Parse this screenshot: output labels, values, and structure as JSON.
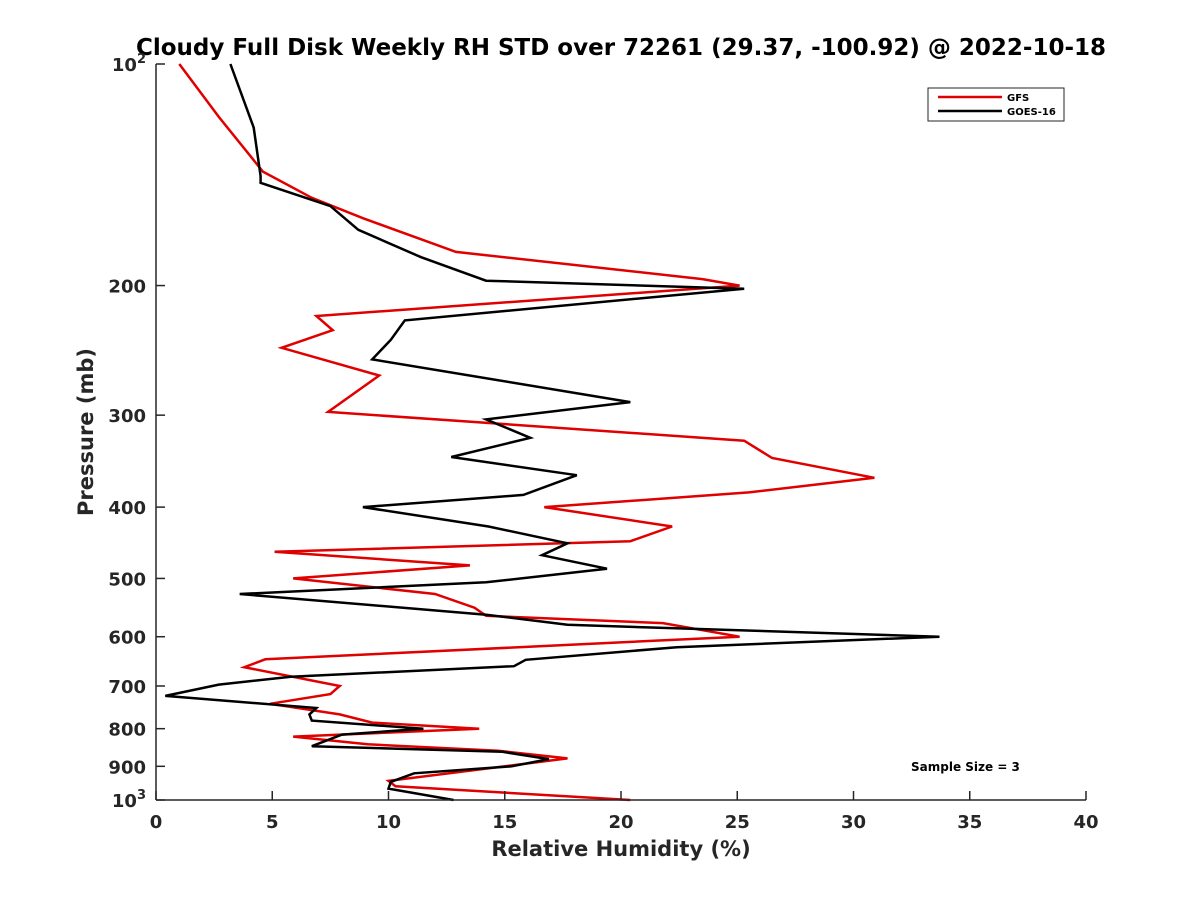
{
  "chart_data": {
    "type": "line",
    "title": "Cloudy Full Disk Weekly RH STD over 72261 (29.37, -100.92) @ 2022-10-18",
    "xlabel": "Relative Humidity (%)",
    "ylabel": "Pressure (mb)",
    "xlim": [
      0,
      40
    ],
    "ylim": [
      100,
      1000
    ],
    "y_scale": "log",
    "y_reversed": true,
    "x_ticks": [
      "0",
      "5",
      "10",
      "15",
      "20",
      "25",
      "30",
      "35",
      "40"
    ],
    "y_ticks": [
      {
        "value": 100,
        "base": "10",
        "exp": "2"
      },
      {
        "value": 200,
        "label": "200"
      },
      {
        "value": 300,
        "label": "300"
      },
      {
        "value": 400,
        "label": "400"
      },
      {
        "value": 500,
        "label": "500"
      },
      {
        "value": 600,
        "label": "600"
      },
      {
        "value": 700,
        "label": "700"
      },
      {
        "value": 800,
        "label": "800"
      },
      {
        "value": 900,
        "label": "900"
      },
      {
        "value": 1000,
        "base": "10",
        "exp": "3"
      }
    ],
    "legend_position": "top-right",
    "grid": false,
    "annotation": "Sample Size = 3",
    "series": [
      {
        "name": "GFS",
        "color": "#e00000",
        "x": [
          1.0,
          2.7,
          4.6,
          6.7,
          8.9,
          12.9,
          23.5,
          25.1,
          6.9,
          7.6,
          5.4,
          9.6,
          7.4,
          25.3,
          26.5,
          30.9,
          25.5,
          16.7,
          22.2,
          20.4,
          5.1,
          13.5,
          5.9,
          12.0,
          13.7,
          14.2,
          21.8,
          25.1,
          4.7,
          3.8,
          7.9,
          7.5,
          4.9,
          7.9,
          9.3,
          13.9,
          5.9,
          9.1,
          14.7,
          17.7,
          10.0,
          10.3,
          20.4
        ],
        "y": [
          100,
          118,
          140,
          152,
          162,
          180,
          196,
          200,
          220,
          230,
          243,
          265,
          297,
          325,
          343,
          365,
          382,
          400,
          425,
          445,
          460,
          480,
          500,
          525,
          548,
          562,
          575,
          600,
          644,
          660,
          700,
          718,
          740,
          765,
          785,
          800,
          820,
          840,
          857,
          878,
          942,
          958,
          1000
        ]
      },
      {
        "name": "GOES-16",
        "color": "#000000",
        "x": [
          3.2,
          4.2,
          4.5,
          4.5,
          7.5,
          8.7,
          11.4,
          14.2,
          25.3,
          10.7,
          10.1,
          9.3,
          20.4,
          14.2,
          16.1,
          12.7,
          18.1,
          15.8,
          8.9,
          14.3,
          17.7,
          16.6,
          19.4,
          14.2,
          3.6,
          14.2,
          17.7,
          33.7,
          22.4,
          15.9,
          15.4,
          5.8,
          2.7,
          0.4,
          6.9,
          6.6,
          6.7,
          11.5,
          8.0,
          6.7,
          14.9,
          16.9,
          15.3,
          11.1,
          10.1,
          10.0,
          12.8
        ],
        "y": [
          100,
          122,
          142,
          145,
          156,
          168,
          183,
          197,
          202,
          223,
          237,
          252,
          288,
          304,
          322,
          342,
          362,
          385,
          400,
          425,
          448,
          465,
          485,
          506,
          525,
          560,
          578,
          600,
          620,
          645,
          658,
          680,
          697,
          722,
          750,
          765,
          780,
          800,
          815,
          845,
          860,
          880,
          900,
          920,
          945,
          965,
          1000
        ]
      }
    ]
  }
}
